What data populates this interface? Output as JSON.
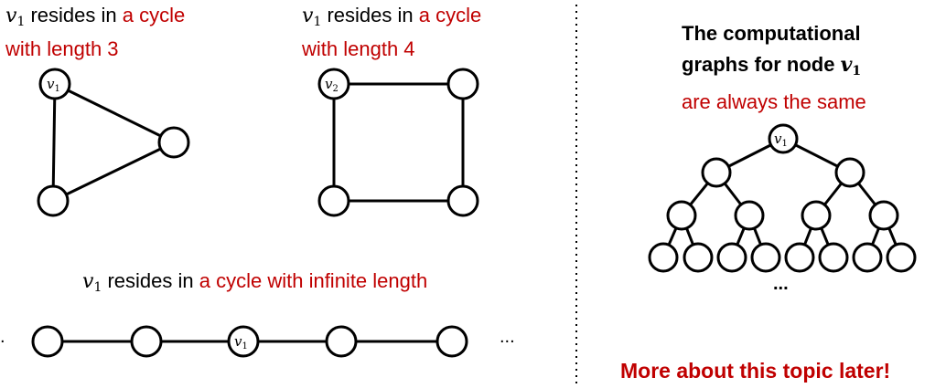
{
  "panels": {
    "cycle3": {
      "var": "v",
      "sub": "1",
      "prefix": " resides in ",
      "highlight_line1": "a cycle",
      "highlight_line2": "with length 3",
      "node_label": "v",
      "node_sub": "1"
    },
    "cycle4": {
      "var": "v",
      "sub": "1",
      "prefix": " resides in ",
      "highlight_line1": "a cycle",
      "highlight_line2": "with length 4",
      "node_label": "v",
      "node_sub": "2"
    },
    "infinite": {
      "var": "v",
      "sub": "1",
      "prefix": " resides in ",
      "highlight": "a cycle with infinite length",
      "node_label": "v",
      "node_sub": "1",
      "left_ellipsis": ".",
      "right_ellipsis": "..."
    }
  },
  "computational": {
    "title_line1": "The computational",
    "title_line2_prefix": "graphs for node ",
    "title_var": "v",
    "title_sub": "1",
    "subtitle": "are always the same",
    "root_label": "v",
    "root_sub": "1",
    "ellipsis": "..."
  },
  "footer": {
    "more_text": "More about this topic later!"
  },
  "colors": {
    "accent_red": "#c00000",
    "divider": "#000000"
  }
}
